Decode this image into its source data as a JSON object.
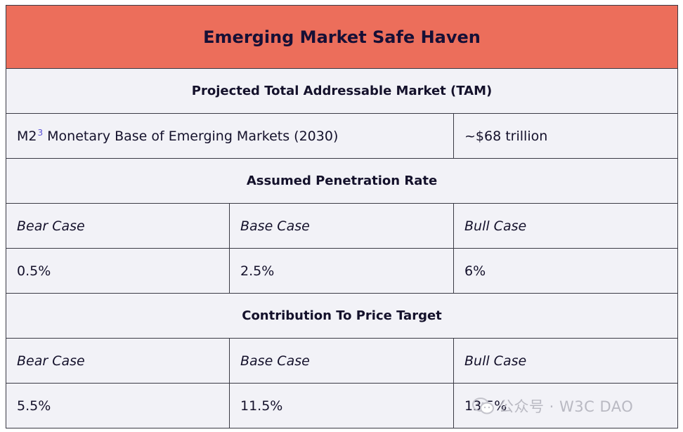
{
  "title": "Emerging Market Safe Haven",
  "tam": {
    "header": "Projected Total Addressable Market (TAM)",
    "label_prefix": "M2",
    "footnote": "3",
    "label_rest": " Monetary Base of Emerging Markets (2030)",
    "value": "~$68 trillion"
  },
  "penetration": {
    "header": "Assumed Penetration Rate",
    "cases": [
      "Bear Case",
      "Base Case",
      "Bull Case"
    ],
    "values": [
      "0.5%",
      "2.5%",
      "6%"
    ]
  },
  "contribution": {
    "header": "Contribution To Price Target",
    "cases": [
      "Bear Case",
      "Base Case",
      "Bull Case"
    ],
    "values": [
      "5.5%",
      "11.5%",
      "13.5%"
    ]
  },
  "watermark": {
    "text": "公众号 · W3C DAO"
  },
  "colors": {
    "title_bg": "#ec6e5b",
    "table_bg": "#f2f2f7",
    "text": "#14112b",
    "footnote": "#5a4fd6"
  }
}
